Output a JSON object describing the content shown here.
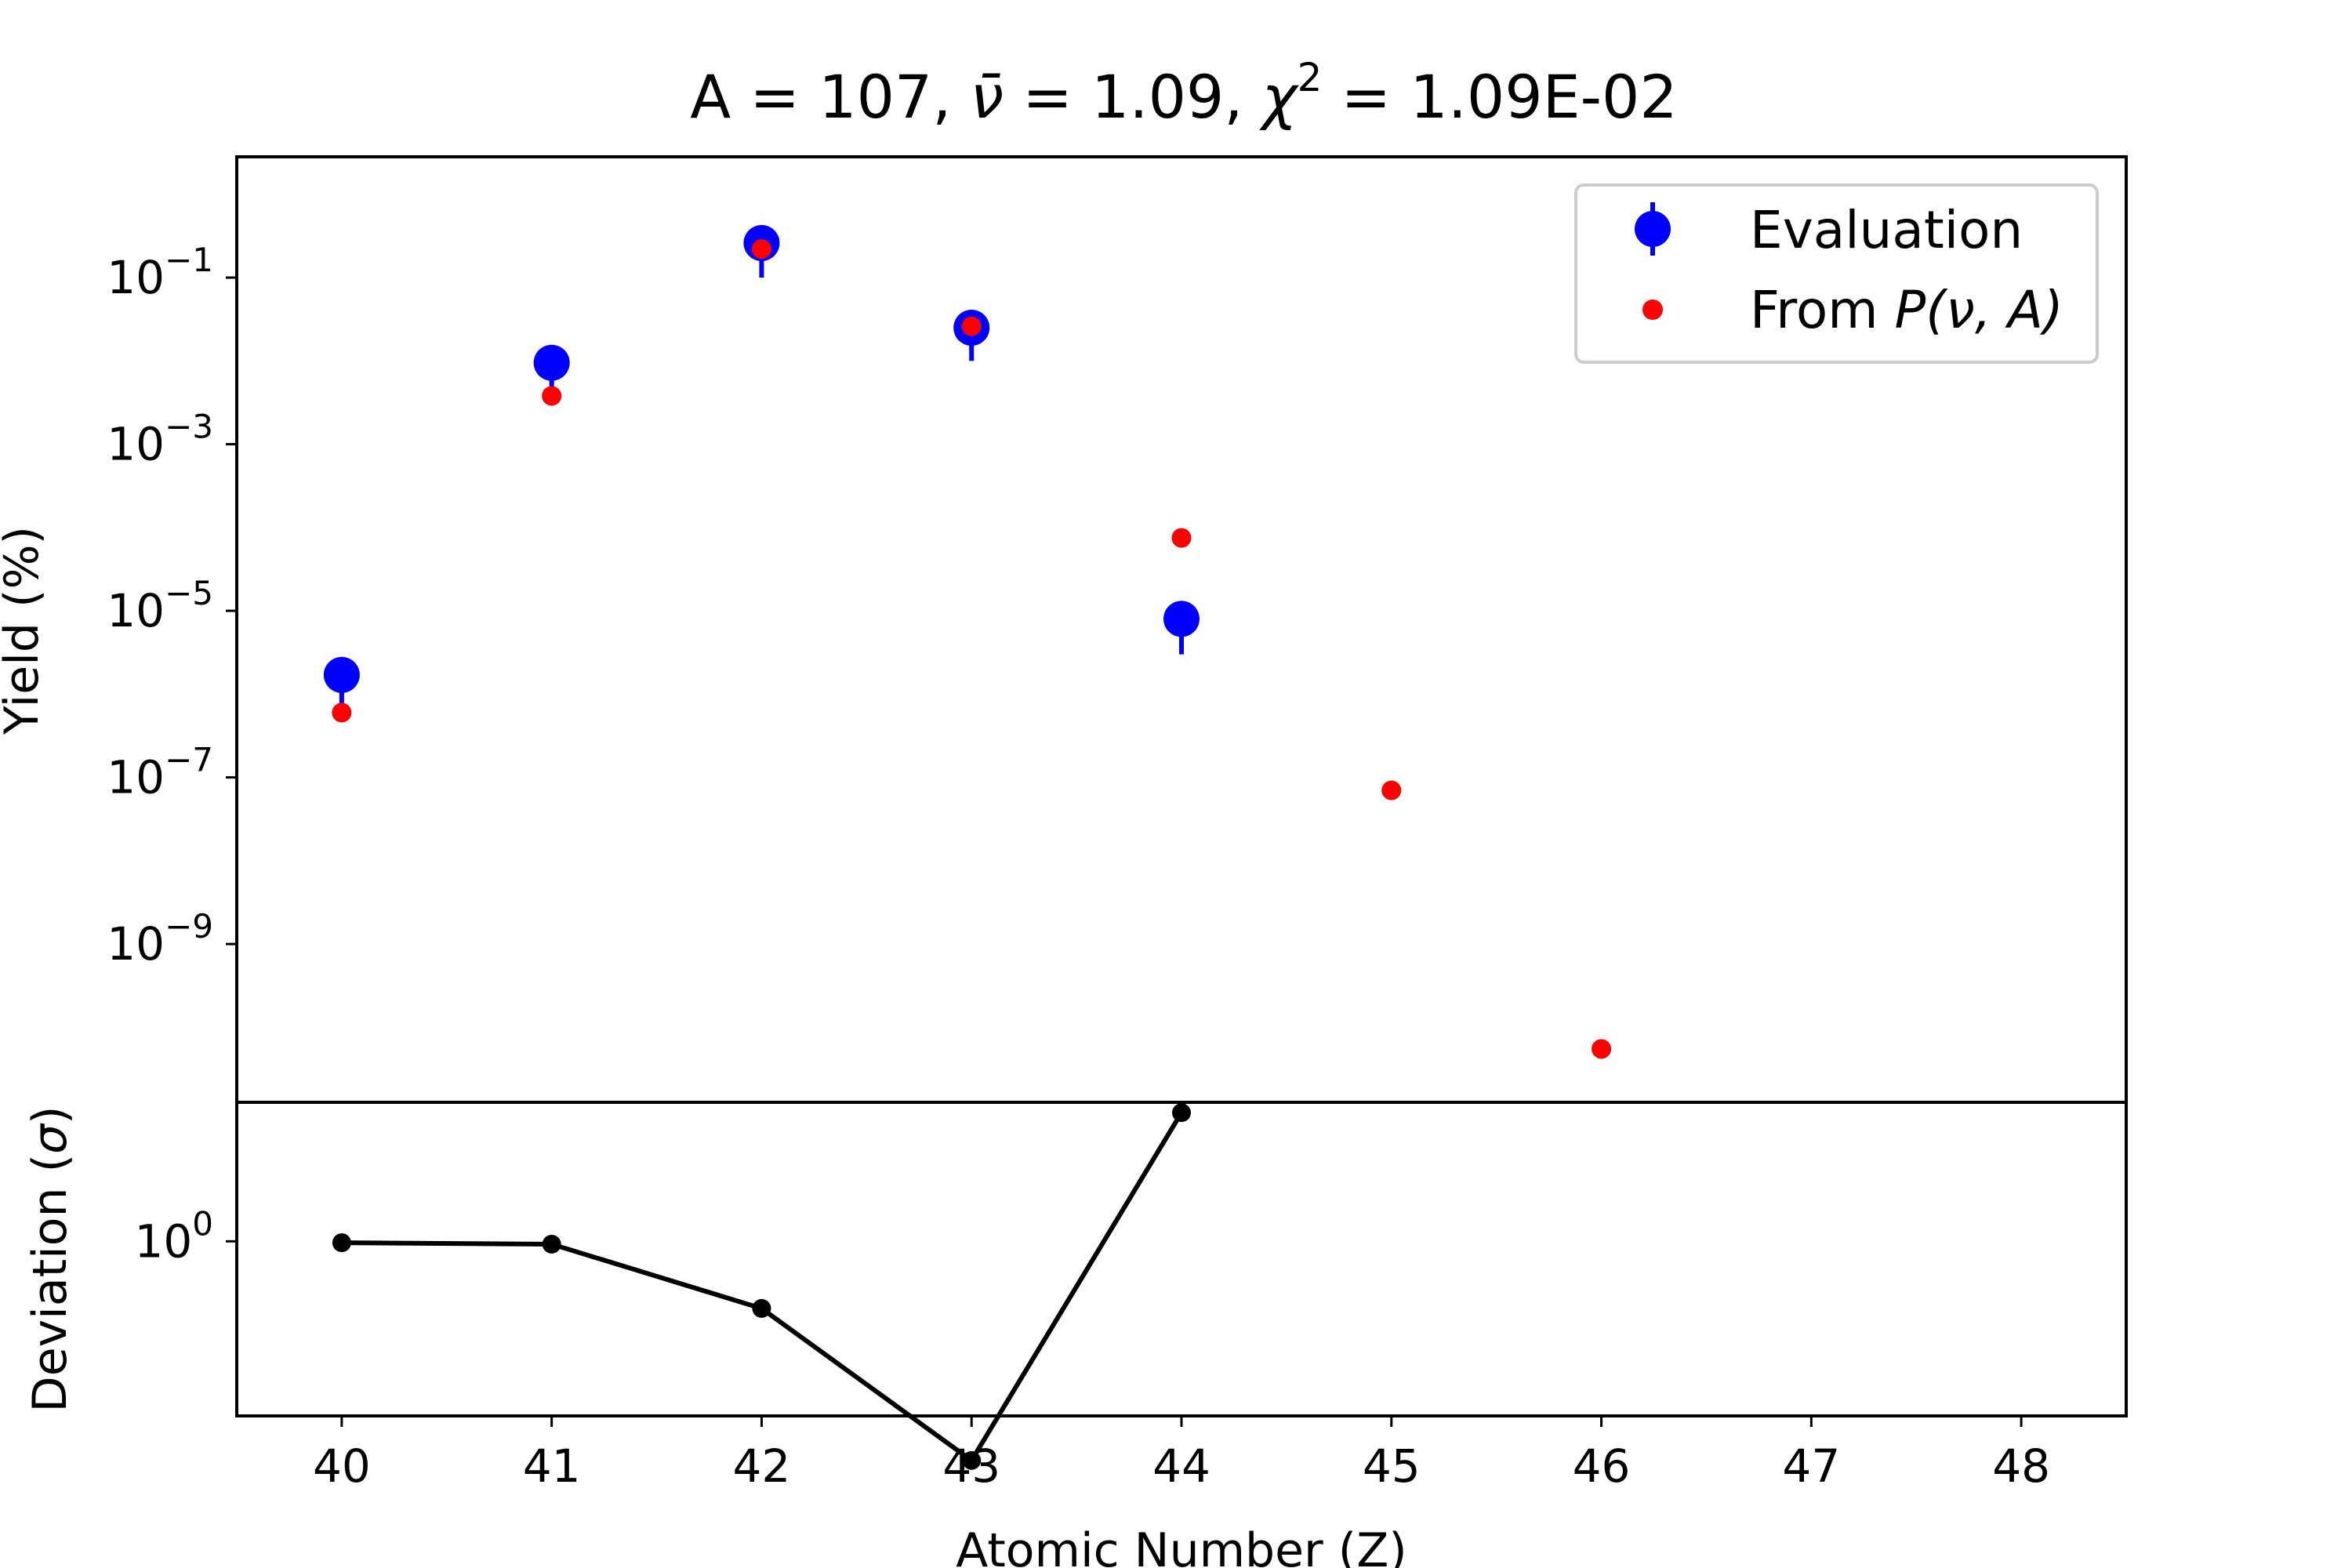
{
  "chart_data": [
    {
      "type": "scatter",
      "panel": "main",
      "title": {
        "a_part": "A = 107, ",
        "nu_symbol": "ν̄",
        "nu_part": " = 1.09, ",
        "chi_symbol": "χ",
        "chi_exponent": "2",
        "chi_part": " = 1.09E-02"
      },
      "xlabel": "",
      "ylabel": "Yield (%)",
      "yscale": "log",
      "xlim": [
        39.5,
        48.5
      ],
      "ylim_log10": [
        -10.9,
        0.45
      ],
      "y_ticks": [
        {
          "base": "10",
          "exp": "−1",
          "log10": -1
        },
        {
          "base": "10",
          "exp": "−3",
          "log10": -3
        },
        {
          "base": "10",
          "exp": "−5",
          "log10": -5
        },
        {
          "base": "10",
          "exp": "−7",
          "log10": -7
        },
        {
          "base": "10",
          "exp": "−9",
          "log10": -9
        }
      ],
      "grid": false,
      "legend_position": "top-right",
      "series": [
        {
          "name": "Evaluation",
          "color": "#0000ff",
          "marker": "large-circle",
          "x": [
            40,
            41,
            42,
            43,
            44
          ],
          "y": [
            1.7e-06,
            0.0095,
            0.26,
            0.025,
            8e-06
          ],
          "err_low": [
            1e-06,
            0.006,
            0.16,
            0.015,
            5e-06
          ]
        },
        {
          "name_prefix": "From ",
          "name_math": "P(ν, A)",
          "color": "#ff0000",
          "marker": "small-circle",
          "x": [
            40,
            41,
            42,
            43,
            44,
            45,
            46
          ],
          "y": [
            6e-07,
            0.0038,
            0.22,
            0.026,
            7.5e-05,
            7e-08,
            5.5e-11
          ]
        }
      ]
    },
    {
      "type": "line",
      "panel": "residual",
      "xlabel": "Atomic Number (Z)",
      "ylabel_prefix": "Deviation (",
      "ylabel_symbol": "σ",
      "ylabel_suffix": ")",
      "yscale": "log",
      "xlim": [
        39.5,
        48.5
      ],
      "ylim_log10": [
        -0.54,
        0.43
      ],
      "y_ticks": [
        {
          "base": "10",
          "exp": "0",
          "log10": 0
        }
      ],
      "x_ticks": [
        "40",
        "41",
        "42",
        "43",
        "44",
        "45",
        "46",
        "47",
        "48"
      ],
      "grid": false,
      "series": [
        {
          "name": "",
          "color": "#000000",
          "marker": "dot",
          "x": [
            40,
            41,
            42,
            43,
            44
          ],
          "y": [
            0.99,
            0.98,
            0.62,
            0.21,
            2.5
          ]
        }
      ]
    }
  ]
}
